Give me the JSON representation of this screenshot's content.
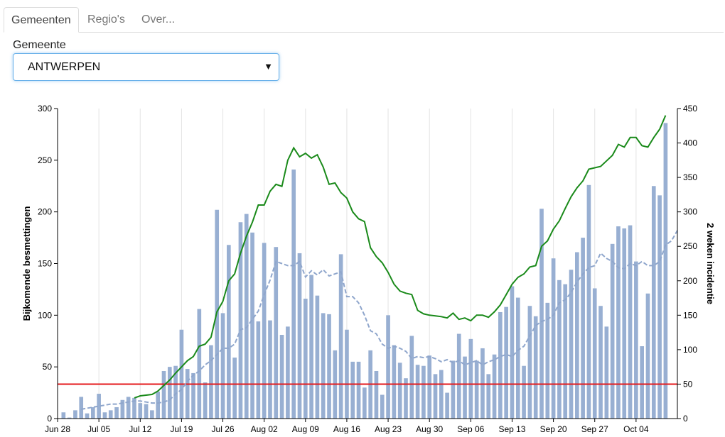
{
  "tabs": [
    {
      "label": "Gemeenten",
      "active": true
    },
    {
      "label": "Regio's",
      "active": false
    },
    {
      "label": "Over...",
      "active": false
    }
  ],
  "filter": {
    "label": "Gemeente",
    "selected": "ANTWERPEN",
    "arrow_icon": "caret-down-icon"
  },
  "colors": {
    "bars": "#98afd2",
    "incidence_line": "#1a8a1a",
    "avg_line": "#8fa6cc",
    "threshold_line": "#e41a1c"
  },
  "chart_data": {
    "type": "bar",
    "title": "",
    "ylabel": "Bijkomende besmettingen",
    "y2label": "2 weken incidentie",
    "ylim": [
      0,
      300
    ],
    "y2lim": [
      0,
      450
    ],
    "yticks": [
      0,
      50,
      100,
      150,
      200,
      250,
      300
    ],
    "y2ticks": [
      0,
      50,
      100,
      150,
      200,
      250,
      300,
      350,
      400,
      450
    ],
    "xlim": [
      "2020-06-28",
      "2020-10-11"
    ],
    "xticks": [
      "Jun 28",
      "Jul 05",
      "Jul 12",
      "Jul 19",
      "Jul 26",
      "Aug 02",
      "Aug 09",
      "Aug 16",
      "Aug 23",
      "Aug 30",
      "Sep 06",
      "Sep 13",
      "Sep 20",
      "Sep 27",
      "Oct 04"
    ],
    "grid": "vertical",
    "series": [
      {
        "kind": "bar",
        "axis": "left",
        "dates_start": "2020-06-29",
        "values": [
          6,
          1,
          8,
          21,
          5,
          11,
          24,
          6,
          8,
          11,
          18,
          21,
          20,
          15,
          14,
          8,
          26,
          46,
          50,
          51,
          86,
          48,
          44,
          106,
          35,
          71,
          202,
          102,
          168,
          59,
          190,
          198,
          180,
          94,
          170,
          95,
          166,
          81,
          89,
          241,
          160,
          116,
          139,
          119,
          102,
          101,
          66,
          159,
          86,
          55,
          55,
          30,
          66,
          46,
          23,
          100,
          71,
          54,
          39,
          80,
          52,
          51,
          61,
          43,
          47,
          25,
          56,
          82,
          60,
          77,
          56,
          68,
          43,
          62,
          103,
          108,
          128,
          117,
          51,
          109,
          99,
          203,
          112,
          155,
          134,
          130,
          144,
          161,
          175,
          226,
          126,
          109,
          89,
          169,
          186,
          184,
          187,
          152,
          70,
          121,
          225,
          216,
          286
        ]
      },
      {
        "kind": "line",
        "axis": "right",
        "style": "solid",
        "dates_start": "2020-07-11",
        "values": [
          30,
          33,
          34,
          35,
          40,
          48,
          56,
          66,
          75,
          84,
          90,
          105,
          108,
          118,
          155,
          170,
          200,
          210,
          240,
          265,
          285,
          310,
          310,
          330,
          340,
          337,
          375,
          393,
          380,
          385,
          378,
          383,
          365,
          340,
          342,
          328,
          320,
          300,
          290,
          286,
          248,
          235,
          226,
          212,
          195,
          185,
          182,
          180,
          157,
          152,
          150,
          149,
          148,
          146,
          153,
          144,
          146,
          142,
          150,
          150,
          147,
          155,
          165,
          180,
          195,
          205,
          210,
          220,
          222,
          250,
          258,
          275,
          287,
          305,
          322,
          335,
          345,
          362,
          364,
          366,
          374,
          382,
          398,
          394,
          408,
          408,
          396,
          394,
          408,
          420,
          440
        ]
      },
      {
        "kind": "line",
        "axis": "left",
        "style": "dashed",
        "dates_start": "2020-07-02",
        "values": [
          9,
          10,
          11,
          12,
          13,
          14,
          14,
          15,
          16,
          17,
          17,
          16,
          15,
          15,
          16,
          18,
          24,
          28,
          36,
          42,
          46,
          52,
          56,
          62,
          68,
          68,
          72,
          86,
          88,
          96,
          104,
          120,
          134,
          152,
          150,
          148,
          148,
          152,
          137,
          143,
          139,
          144,
          138,
          140,
          142,
          118,
          118,
          112,
          100,
          85,
          82,
          72,
          68,
          70,
          68,
          65,
          58,
          60,
          59,
          60,
          58,
          55,
          57,
          54,
          56,
          52,
          54,
          56,
          52,
          55,
          57,
          60,
          62,
          60,
          66,
          70,
          80,
          90,
          94,
          96,
          100,
          112,
          115,
          122,
          132,
          140,
          146,
          148,
          160,
          155,
          152,
          146,
          145,
          150,
          148,
          152,
          148,
          148,
          152,
          168,
          172,
          182
        ]
      },
      {
        "kind": "hline",
        "axis": "right",
        "value": 50
      }
    ]
  }
}
